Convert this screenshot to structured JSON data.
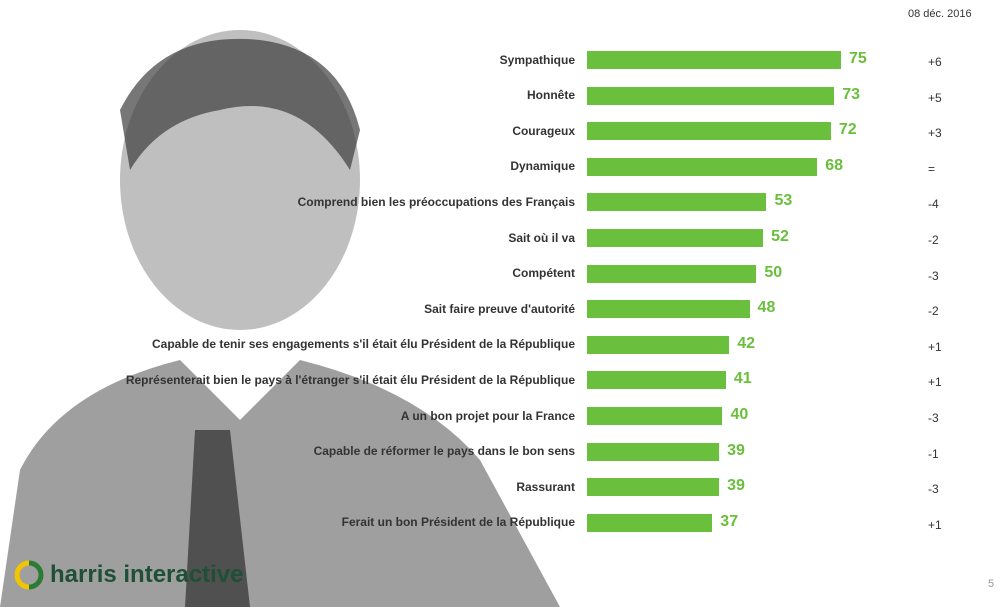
{
  "date": "08 déc. 2016",
  "page_number": "5",
  "logo": "harris interactive",
  "chart_data": {
    "type": "bar",
    "orientation": "horizontal",
    "color": "#6abf3c",
    "categories": [
      "Sympathique",
      "Honnête",
      "Courageux",
      "Dynamique",
      "Comprend bien les préoccupations des Français",
      "Sait où il va",
      "Compétent",
      "Sait faire preuve d'autorité",
      "Capable de tenir ses engagements s'il était élu Président de la République",
      "Représenterait bien le pays à l'étranger s'il était élu Président de la République",
      "A un bon projet pour la France",
      "Capable de réformer le pays dans le bon sens",
      "Rassurant",
      "Ferait un bon Président de la République"
    ],
    "values": [
      75,
      73,
      72,
      68,
      53,
      52,
      50,
      48,
      42,
      41,
      40,
      39,
      39,
      37
    ],
    "changes": [
      "+6",
      "+5",
      "+3",
      "=",
      "-4",
      "-2",
      "-3",
      "-2",
      "+1",
      "+1",
      "-3",
      "-1",
      "-3",
      "+1"
    ]
  }
}
